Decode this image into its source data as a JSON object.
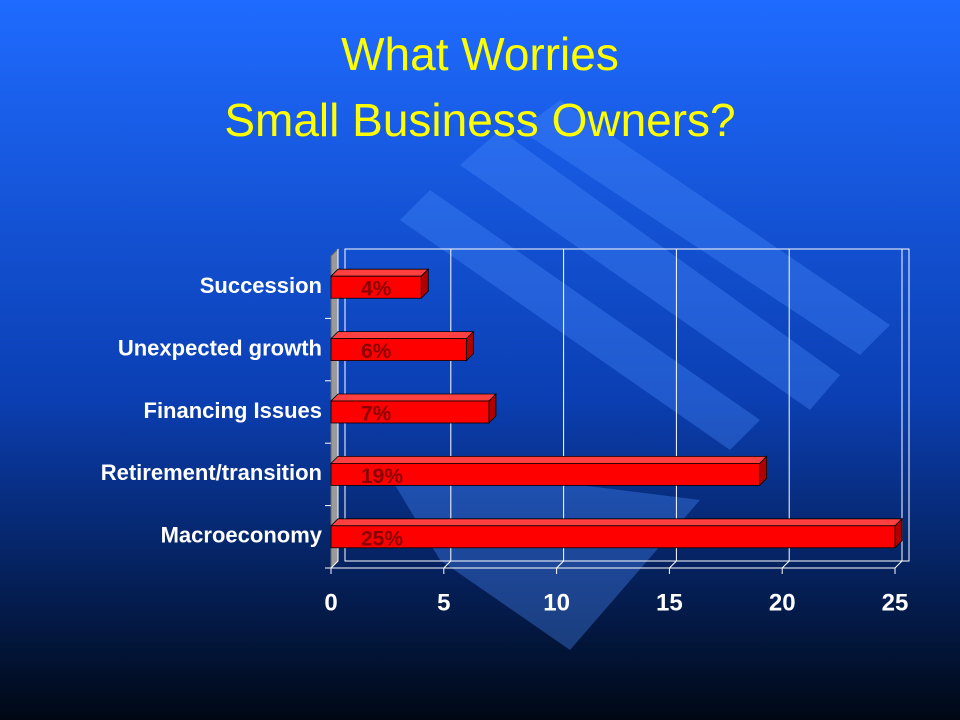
{
  "chart_data": {
    "type": "bar",
    "orientation": "horizontal",
    "title": [
      "What Worries",
      "Small Business Owners?"
    ],
    "categories": [
      "Succession",
      "Unexpected growth",
      "Financing Issues",
      "Retirement/transition",
      "Macroeconomy"
    ],
    "values": [
      4,
      6,
      7,
      19,
      25
    ],
    "value_labels": [
      "4%",
      "6%",
      "7%",
      "19%",
      "25%"
    ],
    "color": "#ff0000",
    "xlim": [
      0,
      25
    ],
    "xticks": [
      0,
      5,
      10,
      15,
      20,
      25
    ],
    "grid": true
  }
}
